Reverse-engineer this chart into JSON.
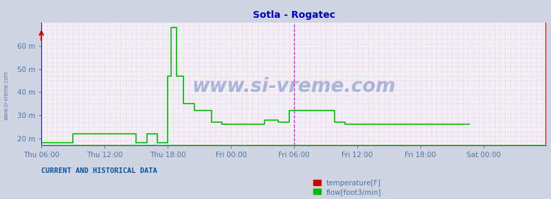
{
  "title": "Sotla - Rogatec",
  "title_color": "#0000cc",
  "background_color": "#d0d4e0",
  "plot_bg_color": "#f0f0f8",
  "yticks": [
    20,
    30,
    40,
    50,
    60
  ],
  "ytick_labels": [
    "20 m",
    "30 m",
    "40 m",
    "50 m",
    "60 m"
  ],
  "ylim": [
    17,
    70
  ],
  "xlabel_ticks": [
    "Thu 06:00",
    "Thu 12:00",
    "Thu 18:00",
    "Fri 00:00",
    "Fri 06:00",
    "Fri 12:00",
    "Fri 18:00",
    "Sat 00:00"
  ],
  "xtick_positions": [
    0,
    72,
    144,
    216,
    288,
    360,
    432,
    504
  ],
  "xlim": [
    0,
    575
  ],
  "grid_color": "#ffb0b0",
  "flow_color": "#00bb00",
  "temp_color": "#cc0000",
  "watermark": "www.si-vreme.com",
  "watermark_color": "#2255aa",
  "legend_label_temp": "temperature[F]",
  "legend_label_flow": "flow[foot3/min]",
  "current_data_label": "CURRENT AND HISTORICAL DATA",
  "vline_magenta_x": 288,
  "vline_red_x": 574,
  "tick_color": "#4477aa",
  "border_left_color": "#0000ff",
  "border_bottom_color": "#00aa00",
  "flow_data": [
    18,
    18,
    18,
    18,
    18,
    18,
    18,
    18,
    18,
    18,
    18,
    18,
    18,
    18,
    18,
    18,
    18,
    18,
    18,
    18,
    18,
    18,
    18,
    18,
    18,
    18,
    18,
    18,
    18,
    18,
    18,
    18,
    18,
    18,
    18,
    18,
    22,
    22,
    22,
    22,
    22,
    22,
    22,
    22,
    22,
    22,
    22,
    22,
    22,
    22,
    22,
    22,
    22,
    22,
    22,
    22,
    22,
    22,
    22,
    22,
    22,
    22,
    22,
    22,
    22,
    22,
    22,
    22,
    22,
    22,
    22,
    22,
    22,
    22,
    22,
    22,
    22,
    22,
    22,
    22,
    22,
    22,
    22,
    22,
    22,
    22,
    22,
    22,
    22,
    22,
    22,
    22,
    22,
    22,
    22,
    22,
    22,
    22,
    22,
    22,
    22,
    22,
    22,
    22,
    22,
    22,
    22,
    22,
    18,
    18,
    18,
    18,
    18,
    18,
    18,
    18,
    18,
    18,
    18,
    18,
    22,
    22,
    22,
    22,
    22,
    22,
    22,
    22,
    22,
    22,
    22,
    22,
    18,
    18,
    18,
    18,
    18,
    18,
    18,
    18,
    18,
    18,
    18,
    18,
    47,
    47,
    47,
    47,
    68,
    68,
    68,
    68,
    68,
    68,
    47,
    47,
    47,
    47,
    47,
    47,
    47,
    47,
    35,
    35,
    35,
    35,
    35,
    35,
    35,
    35,
    35,
    35,
    35,
    35,
    32,
    32,
    32,
    32,
    32,
    32,
    32,
    32,
    32,
    32,
    32,
    32,
    32,
    32,
    32,
    32,
    32,
    32,
    32,
    32,
    27,
    27,
    27,
    27,
    27,
    27,
    27,
    27,
    27,
    27,
    27,
    27,
    26,
    26,
    26,
    26,
    26,
    26,
    26,
    26,
    26,
    26,
    26,
    26,
    26,
    26,
    26,
    26,
    26,
    26,
    26,
    26,
    26,
    26,
    26,
    26,
    26,
    26,
    26,
    26,
    26,
    26,
    26,
    26,
    26,
    26,
    26,
    26,
    26,
    26,
    26,
    26,
    26,
    26,
    26,
    26,
    26,
    26,
    26,
    26,
    28,
    28,
    28,
    28,
    28,
    28,
    28,
    28,
    28,
    28,
    28,
    28,
    28,
    28,
    28,
    28,
    27,
    27,
    27,
    27,
    27,
    27,
    27,
    27,
    27,
    27,
    27,
    27,
    32,
    32,
    32,
    32,
    32,
    32,
    32,
    32,
    32,
    32,
    32,
    32,
    32,
    32,
    32,
    32,
    32,
    32,
    32,
    32,
    32,
    32,
    32,
    32,
    32,
    32,
    32,
    32,
    32,
    32,
    32,
    32,
    32,
    32,
    32,
    32,
    32,
    32,
    32,
    32,
    32,
    32,
    32,
    32,
    32,
    32,
    32,
    32,
    32,
    32,
    32,
    32,
    27,
    27,
    27,
    27,
    27,
    27,
    27,
    27,
    27,
    27,
    27,
    27,
    26,
    26,
    26,
    26,
    26,
    26,
    26,
    26,
    26,
    26,
    26,
    26,
    26,
    26,
    26,
    26,
    26,
    26,
    26,
    26,
    26,
    26,
    26,
    26,
    26,
    26,
    26,
    26,
    26,
    26,
    26,
    26,
    26,
    26,
    26,
    26,
    26,
    26,
    26,
    26,
    26,
    26,
    26,
    26,
    26,
    26,
    26,
    26,
    26,
    26,
    26,
    26,
    26,
    26,
    26,
    26,
    26,
    26,
    26,
    26,
    26,
    26,
    26,
    26,
    26,
    26,
    26,
    26,
    26,
    26,
    26,
    26,
    26,
    26,
    26,
    26,
    26,
    26,
    26,
    26,
    26,
    26,
    26,
    26,
    26,
    26,
    26,
    26,
    26,
    26,
    26,
    26,
    26,
    26,
    26,
    26,
    26,
    26,
    26,
    26,
    26,
    26,
    26,
    26,
    26,
    26,
    26,
    26,
    26,
    26,
    26,
    26,
    26,
    26,
    26,
    26,
    26,
    26,
    26,
    26,
    26,
    26,
    26,
    26,
    26,
    26,
    26,
    26,
    26,
    26,
    26,
    26,
    26,
    26,
    26,
    26,
    26,
    26,
    26,
    26,
    26,
    26
  ]
}
